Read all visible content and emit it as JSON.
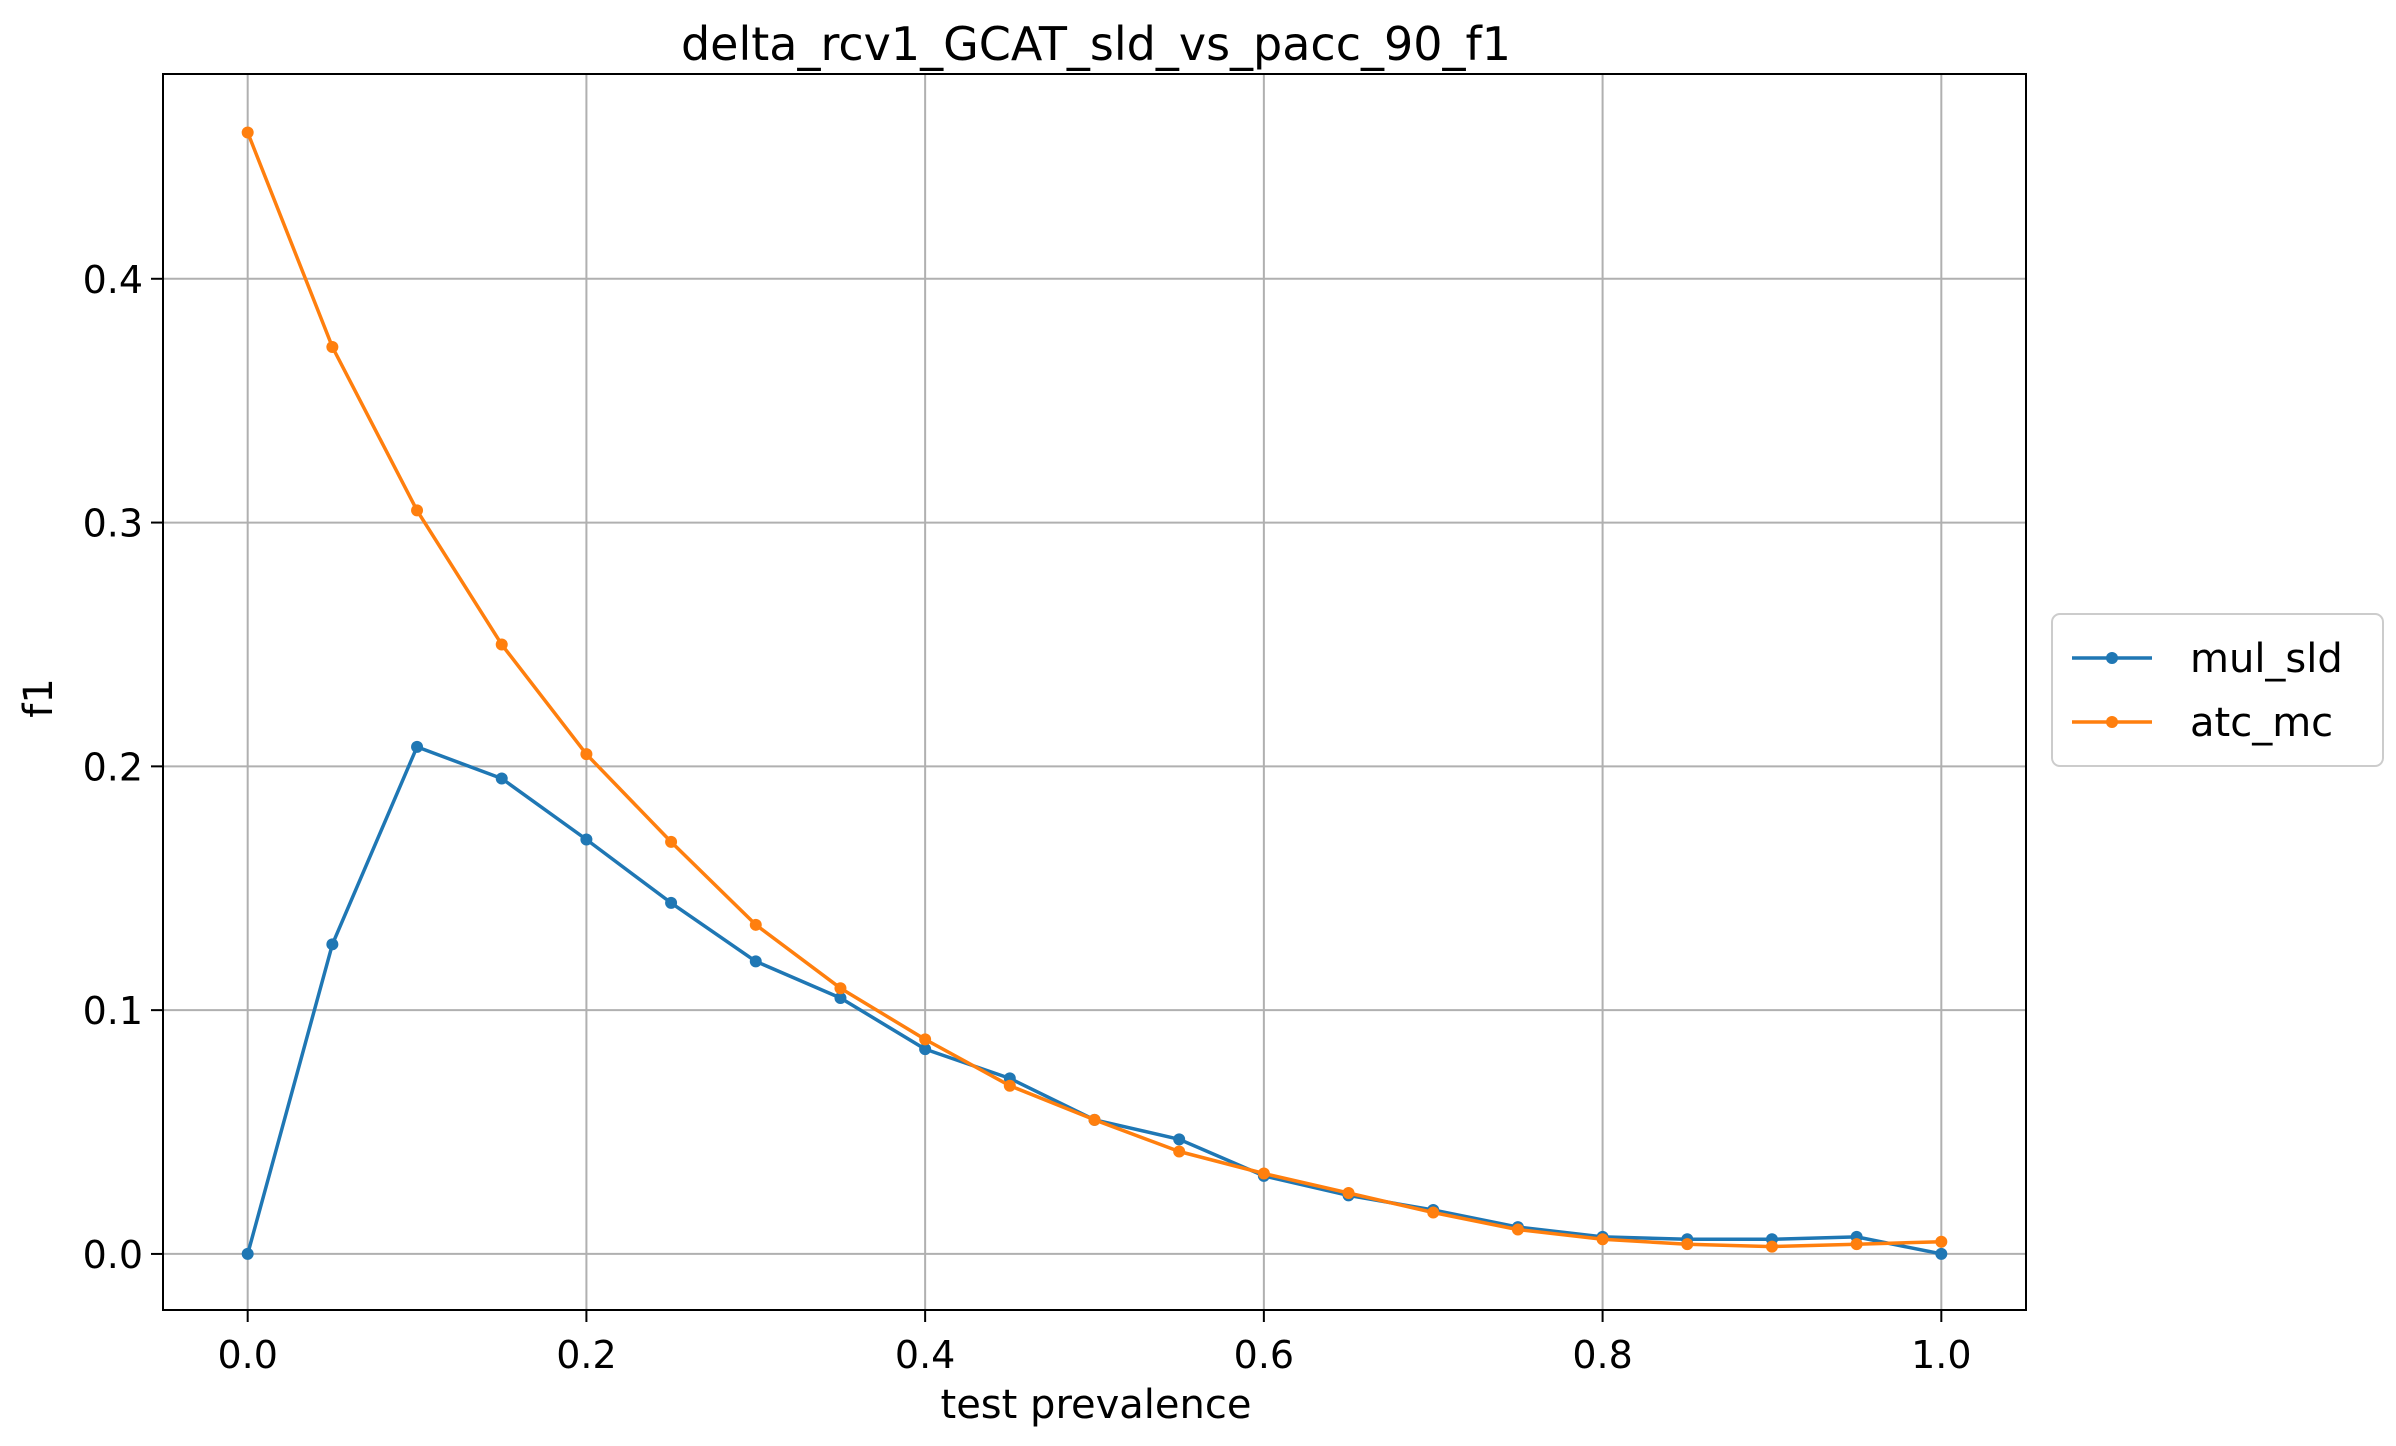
{
  "chart_data": {
    "type": "line",
    "title": "delta_rcv1_GCAT_sld_vs_pacc_90_f1",
    "xlabel": "test prevalence",
    "ylabel": "f1",
    "xlim": [
      -0.05,
      1.05
    ],
    "ylim": [
      -0.023,
      0.484
    ],
    "xticks": [
      0.0,
      0.2,
      0.4,
      0.6,
      0.8,
      1.0
    ],
    "yticks": [
      0.0,
      0.1,
      0.2,
      0.3,
      0.4
    ],
    "xtick_labels": [
      "0.0",
      "0.2",
      "0.4",
      "0.6",
      "0.8",
      "1.0"
    ],
    "ytick_labels": [
      "0.0",
      "0.1",
      "0.2",
      "0.3",
      "0.4"
    ],
    "grid": true,
    "legend_position": "outside-right",
    "x": [
      0.0,
      0.05,
      0.1,
      0.15,
      0.2,
      0.25,
      0.3,
      0.35,
      0.4,
      0.45,
      0.5,
      0.55,
      0.6,
      0.65,
      0.7,
      0.75,
      0.8,
      0.85,
      0.9,
      0.95,
      1.0
    ],
    "series": [
      {
        "name": "mul_sld",
        "color": "#1f77b4",
        "values": [
          0.0,
          0.127,
          0.208,
          0.195,
          0.17,
          0.144,
          0.12,
          0.105,
          0.084,
          0.072,
          0.055,
          0.047,
          0.032,
          0.024,
          0.018,
          0.011,
          0.007,
          0.006,
          0.006,
          0.007,
          0.0
        ]
      },
      {
        "name": "atc_mc",
        "color": "#ff7f0e",
        "values": [
          0.46,
          0.372,
          0.305,
          0.25,
          0.205,
          0.169,
          0.135,
          0.109,
          0.088,
          0.069,
          0.055,
          0.042,
          0.033,
          0.025,
          0.017,
          0.01,
          0.006,
          0.004,
          0.003,
          0.004,
          0.005
        ]
      }
    ]
  }
}
